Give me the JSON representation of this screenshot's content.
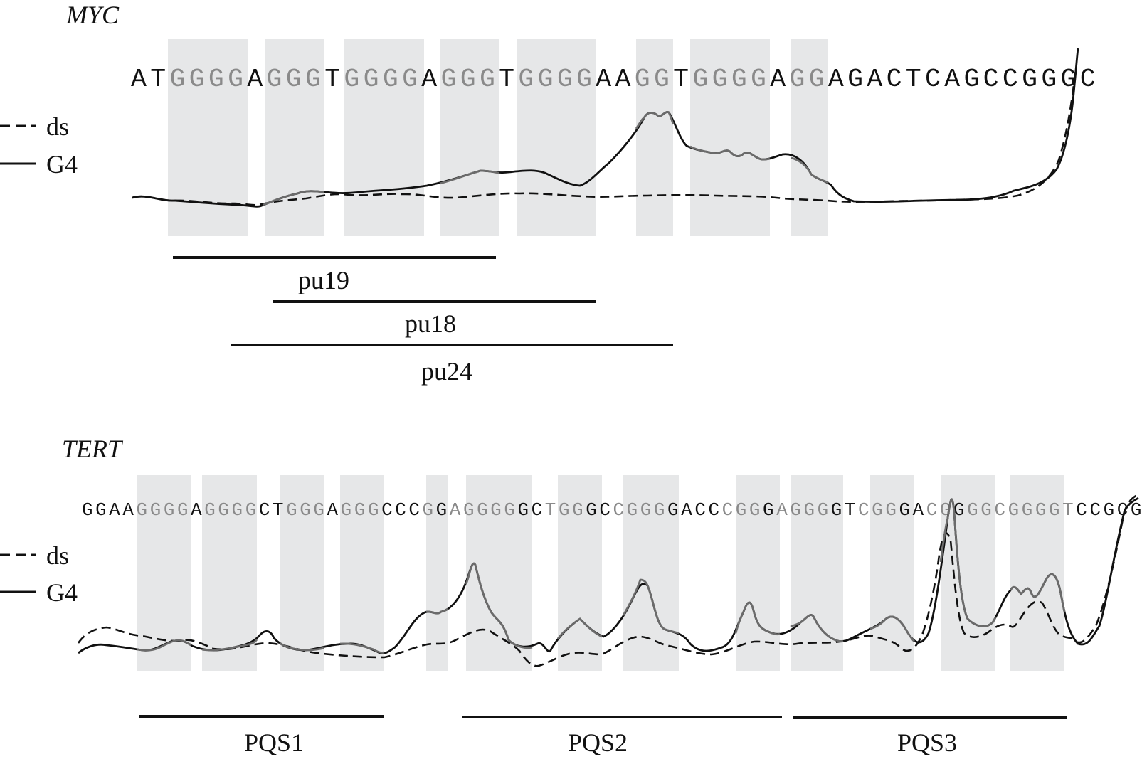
{
  "panels": {
    "myc": {
      "title": "MYC",
      "sequence": "ATGGGGAGGGTGGGGAGGGTGGGGAAGGTGGGGAGGAGACTCAGCCGGGC",
      "highlight": "00111101110111101110111100110111101100000000000000",
      "legend": {
        "dashed": "ds",
        "solid": "G4"
      },
      "fragments": [
        {
          "label": "pu19"
        },
        {
          "label": "pu18"
        },
        {
          "label": "pu24"
        }
      ]
    },
    "tert": {
      "title": "TERT",
      "sequence": "GGAAGGGGAGGGGCTGGGAGGGCCCGGAGGGGGCTGGGCCGGGGACCCGGGAGGGGTCGGGACGGGGCGGGGTCCGCG",
      "highlight": "000011110111100111011100010111110011100111100001110111100111001101111111100000",
      "legend": {
        "dashed": "ds",
        "solid": "G4"
      },
      "fragments": [
        {
          "label": "PQS1"
        },
        {
          "label": "PQS2"
        },
        {
          "label": "PQS3"
        }
      ]
    }
  },
  "colors": {
    "shade": "#e6e7e8",
    "ink": "#111111",
    "gray_trace": "#6b6b6b",
    "gray_text": "#8a8a8a"
  }
}
